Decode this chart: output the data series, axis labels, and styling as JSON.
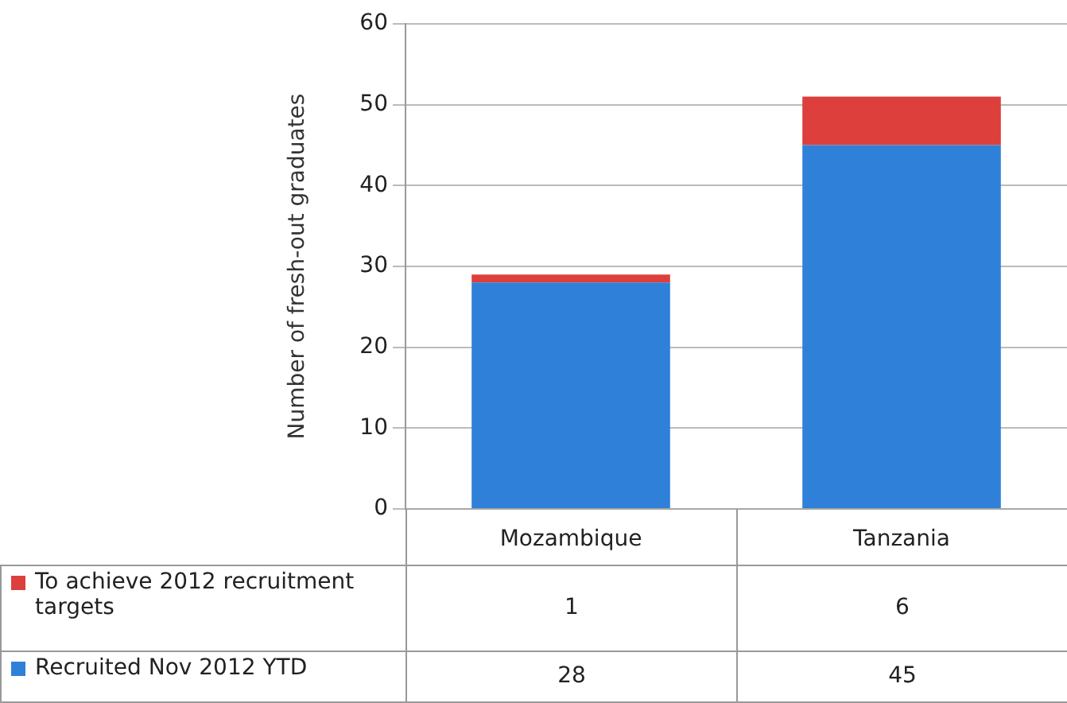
{
  "chart_data": {
    "type": "bar",
    "ylabel": "Number of fresh-out graduates",
    "categories": [
      "Mozambique",
      "Tanzania"
    ],
    "stacked": true,
    "series": [
      {
        "name": "Recruited Nov 2012  YTD",
        "color": "#2f80d8",
        "values": [
          28,
          45
        ]
      },
      {
        "name": "To achieve 2012 recruitment targets",
        "color": "#dc3f3c",
        "values": [
          1,
          6
        ]
      }
    ],
    "ylim": [
      0,
      60
    ],
    "yticks": [
      0,
      10,
      20,
      30,
      40,
      50,
      60
    ],
    "grid": "y",
    "legend": "bottom",
    "data_labels": true
  }
}
